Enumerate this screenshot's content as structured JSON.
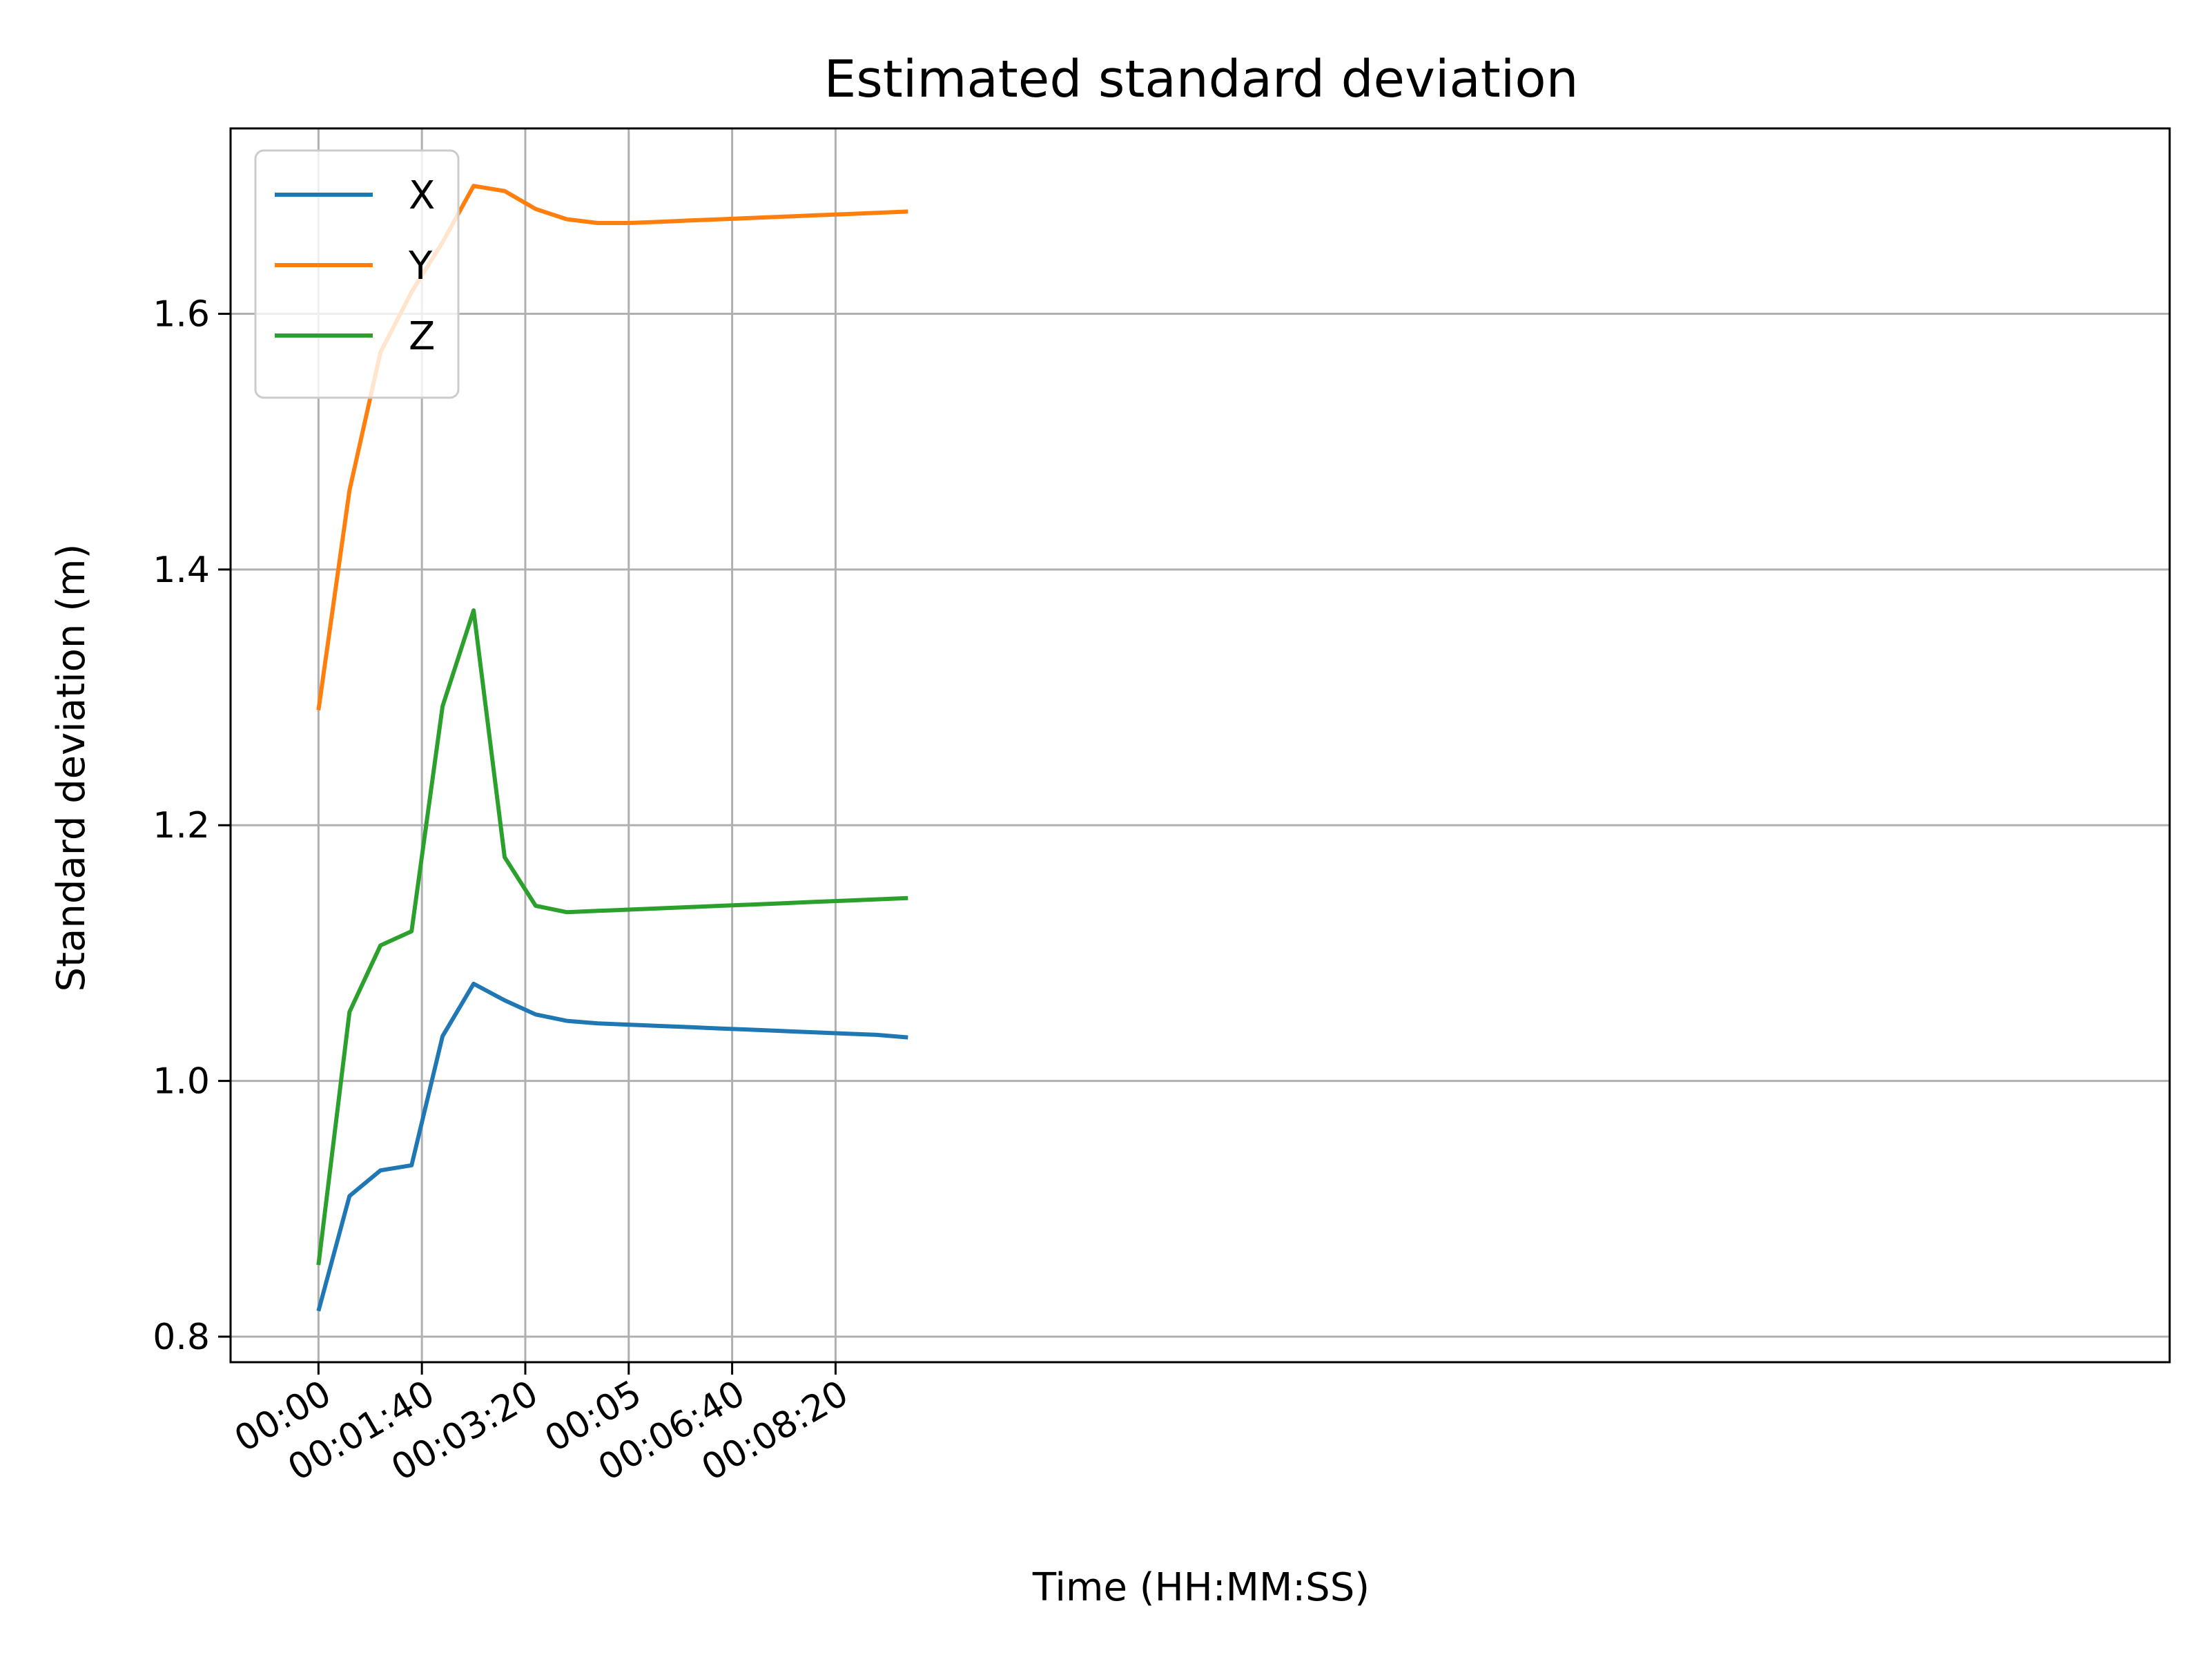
{
  "chart_data": {
    "type": "line",
    "title": "Estimated standard deviation",
    "xlabel": "Time (HH:MM:SS)",
    "ylabel": "Standard deviation (m)",
    "x_unit": "seconds",
    "xlim": [
      -85,
      1790
    ],
    "ylim": [
      0.78,
      1.745
    ],
    "grid": true,
    "legend_position": "top-left",
    "xticks": [
      {
        "value": 0,
        "label": "00:00"
      },
      {
        "value": 100,
        "label": "00:01:40"
      },
      {
        "value": 200,
        "label": "00:03:20"
      },
      {
        "value": 300,
        "label": "00:05"
      },
      {
        "value": 400,
        "label": "00:06:40"
      },
      {
        "value": 500,
        "label": "00:08:20"
      }
    ],
    "yticks": [
      {
        "value": 0.8,
        "label": "0.8"
      },
      {
        "value": 1.0,
        "label": "1.0"
      },
      {
        "value": 1.2,
        "label": "1.2"
      },
      {
        "value": 1.4,
        "label": "1.4"
      },
      {
        "value": 1.6,
        "label": "1.6"
      }
    ],
    "x": [
      0,
      30,
      60,
      90,
      120,
      150,
      180,
      210,
      240,
      270,
      300,
      330,
      360,
      390,
      420,
      450,
      480,
      510,
      540,
      570
    ],
    "series": [
      {
        "name": "X",
        "color": "#1f77b4",
        "values": [
          0.82,
          0.91,
          0.93,
          0.934,
          1.035,
          1.076,
          1.063,
          1.052,
          1.047,
          1.045,
          1.044,
          1.043,
          1.042,
          1.041,
          1.04,
          1.039,
          1.038,
          1.037,
          1.036,
          1.034
        ]
      },
      {
        "name": "Y",
        "color": "#ff7f0e",
        "values": [
          1.29,
          1.462,
          1.57,
          1.617,
          1.656,
          1.7,
          1.696,
          1.682,
          1.674,
          1.671,
          1.671,
          1.672,
          1.673,
          1.674,
          1.675,
          1.676,
          1.677,
          1.678,
          1.679,
          1.68
        ]
      },
      {
        "name": "Z",
        "color": "#2ca02c",
        "values": [
          0.856,
          1.054,
          1.106,
          1.117,
          1.293,
          1.368,
          1.175,
          1.137,
          1.132,
          1.133,
          1.134,
          1.135,
          1.136,
          1.137,
          1.138,
          1.139,
          1.14,
          1.141,
          1.142,
          1.143
        ]
      }
    ]
  }
}
